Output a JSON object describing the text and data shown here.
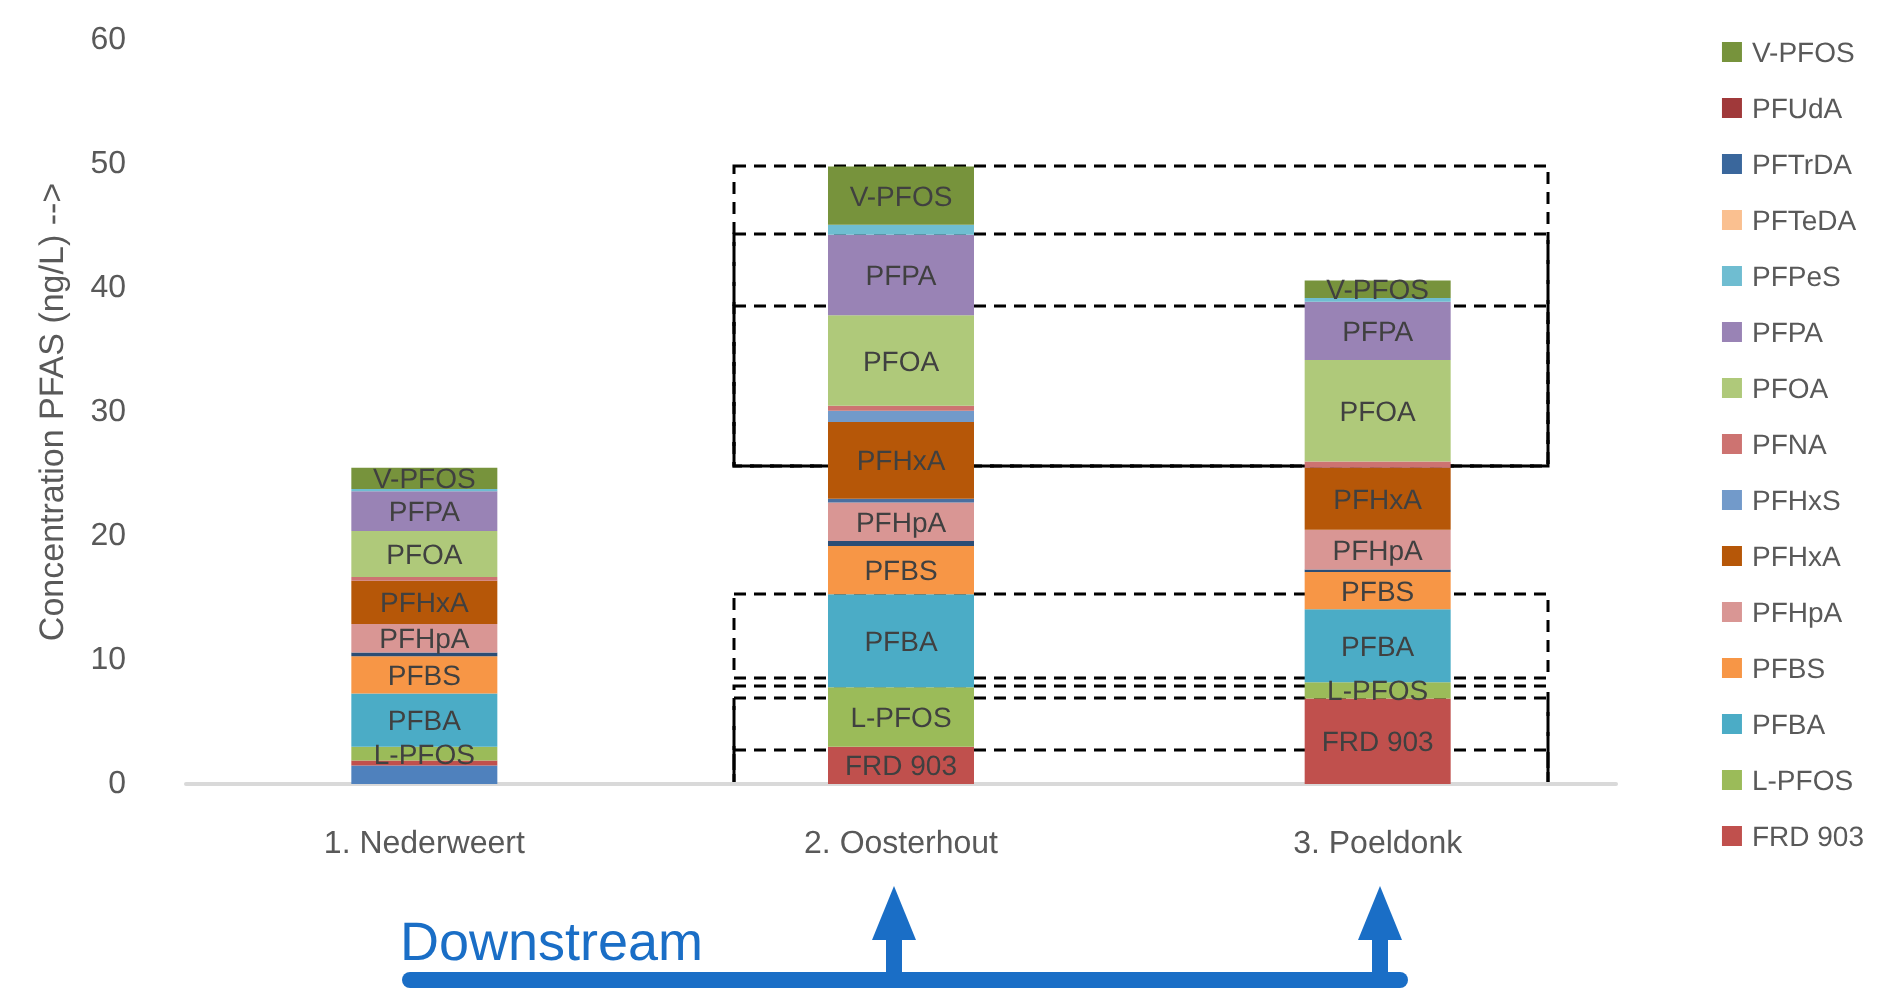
{
  "chart_data": {
    "type": "bar",
    "stacked": true,
    "ylabel": "Concentration PFAS (ng/L) -->",
    "categories": [
      "1. Nederweert",
      "2. Oosterhout",
      "3. Poeldonk"
    ],
    "ylim": [
      0,
      60
    ],
    "yticks": [
      0,
      10,
      20,
      30,
      40,
      50,
      60
    ],
    "grid": false,
    "legend": "right",
    "annotations": [
      "Downstream"
    ],
    "series": [
      {
        "color": "#4f81bd",
        "values": [
          1.5,
          0,
          0
        ]
      },
      {
        "name": "FRD 903",
        "color": "#c0504d",
        "values": [
          0.4,
          3.0,
          6.9
        ]
      },
      {
        "name": "L-PFOS",
        "color": "#9bbb59",
        "values": [
          1.1,
          4.8,
          1.3
        ]
      },
      {
        "name": "PFBA",
        "color": "#4bacc6",
        "values": [
          4.3,
          7.5,
          5.9
        ]
      },
      {
        "name": "PFBS",
        "color": "#f79646",
        "values": [
          3.0,
          3.9,
          3.0
        ]
      },
      {
        "color": "#2c4d75",
        "values": [
          0.3,
          0.4,
          0.2
        ]
      },
      {
        "name": "PFHpA",
        "color": "#d99694",
        "values": [
          2.3,
          3.1,
          3.2
        ]
      },
      {
        "color": "#4a6fa0",
        "values": [
          0,
          0.3,
          0
        ]
      },
      {
        "name": "PFHxA",
        "color": "#b65708",
        "values": [
          3.5,
          6.2,
          5.0
        ]
      },
      {
        "name": "PFHxS",
        "color": "#729aca",
        "values": [
          0,
          0.9,
          0
        ]
      },
      {
        "name": "PFNA",
        "color": "#cd7371",
        "values": [
          0.3,
          0.4,
          0.5
        ]
      },
      {
        "name": "PFOA",
        "color": "#afc97a",
        "values": [
          3.7,
          7.3,
          8.2
        ]
      },
      {
        "name": "PFPA",
        "color": "#9983b5",
        "values": [
          3.2,
          6.5,
          4.7
        ]
      },
      {
        "name": "PFPeS",
        "color": "#6fbdd1",
        "values": [
          0.2,
          0.8,
          0.3
        ]
      },
      {
        "name": "PFTeDA",
        "color": "#fac090",
        "values": [
          0,
          0,
          0
        ]
      },
      {
        "name": "PFTrDA",
        "color": "#3a679c",
        "values": [
          0,
          0,
          0
        ]
      },
      {
        "name": "PFUdA",
        "color": "#a0393a",
        "values": [
          0,
          0,
          0
        ]
      },
      {
        "name": "V-PFOS",
        "color": "#77933c",
        "values": [
          1.7,
          4.7,
          1.4
        ]
      }
    ]
  }
}
